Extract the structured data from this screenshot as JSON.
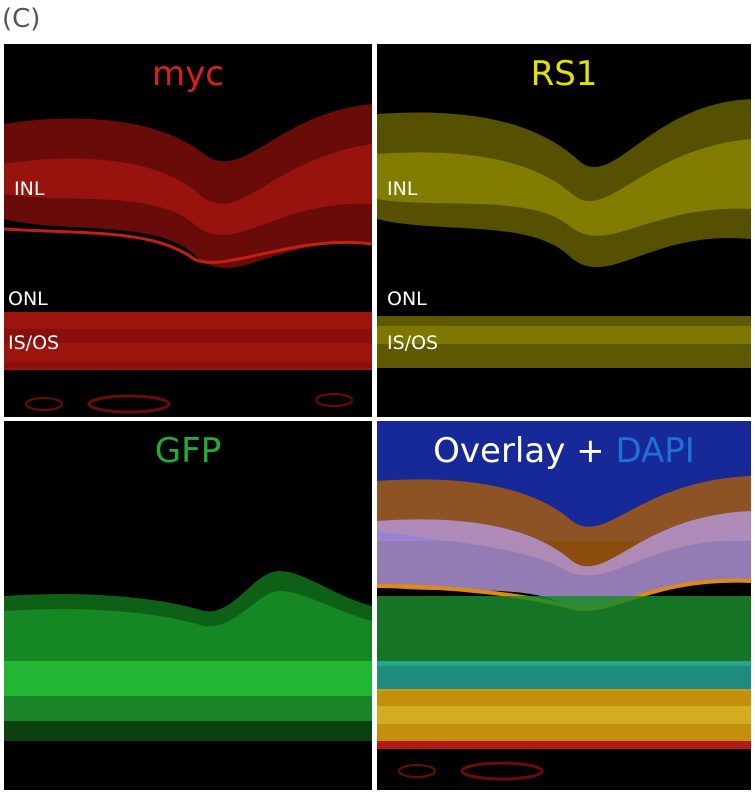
{
  "figure_label": "(C)",
  "panels": {
    "myc": {
      "title": "myc",
      "color": "#d8211a",
      "layers": [
        "INL",
        "ONL",
        "IS/OS"
      ]
    },
    "rs1": {
      "title": "RS1",
      "color": "#e6e000",
      "layers": [
        "INL",
        "ONL",
        "IS/OS"
      ]
    },
    "gfp": {
      "title": "GFP",
      "color": "#1fae3a"
    },
    "overlay": {
      "title_main": "Overlay + ",
      "title_dapi": "DAPI",
      "main_color": "#ffffff",
      "dapi_color": "#1f6fd6"
    }
  }
}
